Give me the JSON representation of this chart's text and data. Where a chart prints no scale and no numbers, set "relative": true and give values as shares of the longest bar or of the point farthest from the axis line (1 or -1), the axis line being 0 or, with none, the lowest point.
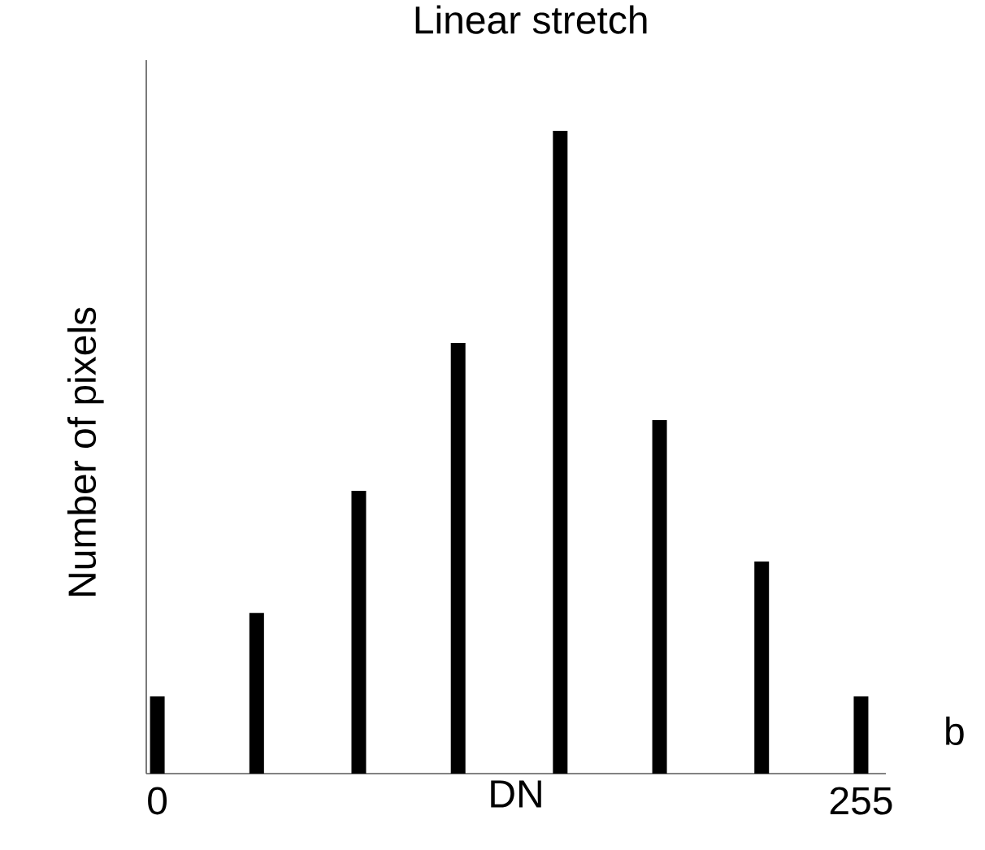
{
  "chart_data": {
    "type": "bar",
    "title": "Linear stretch",
    "xlabel": "DN",
    "ylabel": "Number of pixels",
    "x": [
      0,
      36,
      73,
      109,
      146,
      182,
      219,
      255
    ],
    "values": [
      0.12,
      0.25,
      0.44,
      0.67,
      1,
      0.55,
      0.33,
      0.12
    ],
    "color": "#000000",
    "relative": true,
    "xlim": [
      -4,
      264
    ],
    "xticks": [
      0,
      255
    ],
    "annotations": [
      "b"
    ]
  }
}
